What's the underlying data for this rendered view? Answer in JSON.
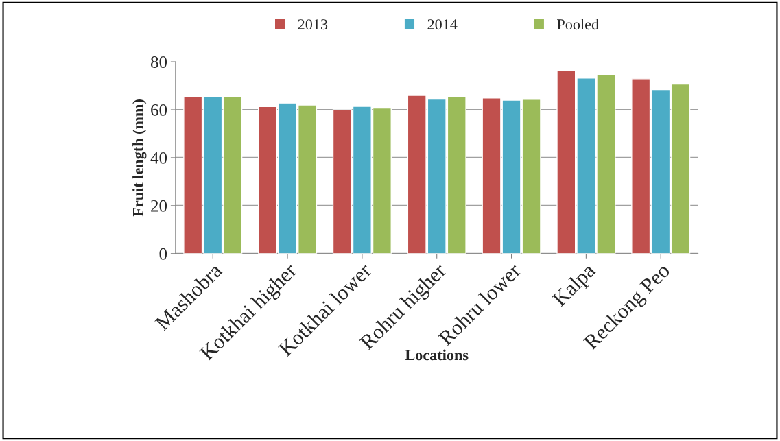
{
  "chart_data": {
    "type": "bar",
    "xlabel": "Locations",
    "ylabel": "Fruit length (mm)",
    "categories": [
      "Mashobra",
      "Kotkhai higher",
      "Kotkhai lower",
      "Rohru higher",
      "Rohru lower",
      "Kalpa",
      "Reckong Peo"
    ],
    "series": [
      {
        "name": "2013",
        "color": "#c0504d",
        "values": [
          65.3,
          61.3,
          60.0,
          66.0,
          64.9,
          76.5,
          72.9
        ]
      },
      {
        "name": "2014",
        "color": "#4bacc6",
        "values": [
          65.3,
          62.8,
          61.4,
          64.4,
          64.0,
          73.2,
          68.4
        ]
      },
      {
        "name": "Pooled",
        "color": "#9bbb59",
        "values": [
          65.3,
          62.0,
          60.7,
          65.3,
          64.3,
          74.8,
          70.7
        ]
      }
    ],
    "ylim": [
      0,
      80
    ],
    "yticks": [
      0,
      20,
      40,
      60,
      80
    ],
    "grid": "y",
    "legend": "top"
  }
}
